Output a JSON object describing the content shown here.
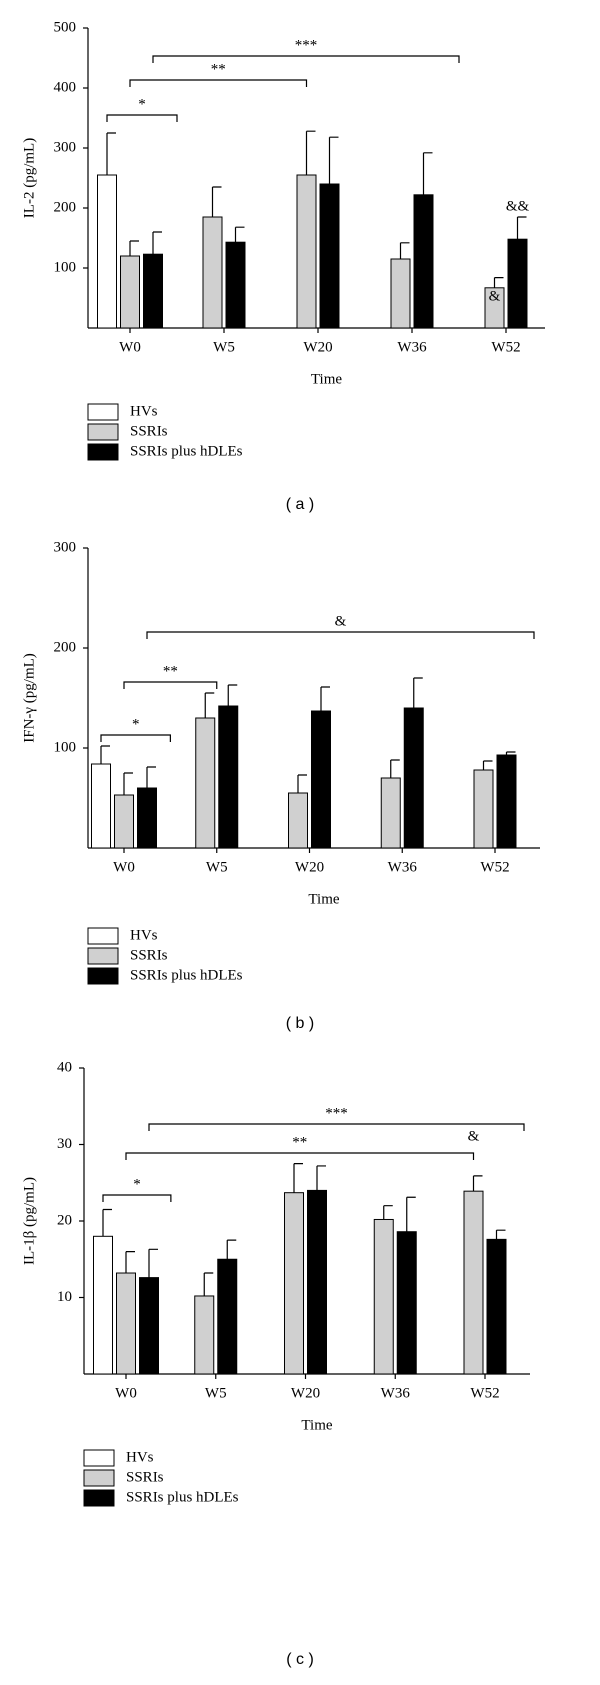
{
  "chart_data": [
    {
      "type": "bar",
      "ylabel": "IL-2 (pg/mL)",
      "xlabel": "Time",
      "panel_label": "( a )",
      "categories": [
        "W0",
        "W5",
        "W20",
        "W36",
        "W52"
      ],
      "series": [
        {
          "name": "HVs",
          "color": "#ffffff",
          "values": [
            255,
            null,
            null,
            null,
            null
          ],
          "errors": [
            70,
            null,
            null,
            null,
            null
          ]
        },
        {
          "name": "SSRIs",
          "color": "#d0d0d0",
          "values": [
            120,
            185,
            255,
            115,
            67
          ],
          "errors": [
            25,
            50,
            73,
            27,
            17
          ]
        },
        {
          "name": "SSRIs plus hDLEs",
          "color": "#000000",
          "values": [
            123,
            143,
            240,
            222,
            148
          ],
          "errors": [
            37,
            25,
            78,
            70,
            37
          ]
        }
      ],
      "ylim": [
        0,
        500
      ],
      "yticks": [
        100,
        200,
        300,
        400,
        500
      ],
      "annotations": [
        {
          "text": "*"
        },
        {
          "text": "**"
        },
        {
          "text": "***"
        },
        {
          "text": "&"
        },
        {
          "text": "&&"
        }
      ]
    },
    {
      "type": "bar",
      "ylabel": "IFN-γ (pg/mL)",
      "xlabel": "Time",
      "panel_label": "( b )",
      "categories": [
        "W0",
        "W5",
        "W20",
        "W36",
        "W52"
      ],
      "series": [
        {
          "name": "HVs",
          "color": "#ffffff",
          "values": [
            84,
            null,
            null,
            null,
            null
          ],
          "errors": [
            18,
            null,
            null,
            null,
            null
          ]
        },
        {
          "name": "SSRIs",
          "color": "#d0d0d0",
          "values": [
            53,
            130,
            55,
            70,
            78
          ],
          "errors": [
            22,
            25,
            18,
            18,
            9
          ]
        },
        {
          "name": "SSRIs plus hDLEs",
          "color": "#000000",
          "values": [
            60,
            142,
            137,
            140,
            93
          ],
          "errors": [
            21,
            21,
            24,
            30,
            3
          ]
        }
      ],
      "ylim": [
        0,
        300
      ],
      "yticks": [
        100,
        200,
        300
      ],
      "annotations": [
        {
          "text": "*"
        },
        {
          "text": "**"
        },
        {
          "text": "&"
        }
      ]
    },
    {
      "type": "bar",
      "ylabel": "IL-1β (pg/mL)",
      "xlabel": "Time",
      "panel_label": "( c )",
      "categories": [
        "W0",
        "W5",
        "W20",
        "W36",
        "W52"
      ],
      "series": [
        {
          "name": "HVs",
          "color": "#ffffff",
          "values": [
            18,
            null,
            null,
            null,
            null
          ],
          "errors": [
            3.5,
            null,
            null,
            null,
            null
          ]
        },
        {
          "name": "SSRIs",
          "color": "#d0d0d0",
          "values": [
            13.2,
            10.2,
            23.7,
            20.2,
            23.9
          ],
          "errors": [
            2.8,
            3,
            3.8,
            1.8,
            2
          ]
        },
        {
          "name": "SSRIs plus hDLEs",
          "color": "#000000",
          "values": [
            12.6,
            15,
            24,
            18.6,
            17.6
          ],
          "errors": [
            3.7,
            2.5,
            3.2,
            4.5,
            1.2
          ]
        }
      ],
      "ylim": [
        0,
        40
      ],
      "yticks": [
        10,
        20,
        30,
        40
      ],
      "annotations": [
        {
          "text": "*"
        },
        {
          "text": "**"
        },
        {
          "text": "***"
        },
        {
          "text": "&"
        }
      ]
    }
  ]
}
